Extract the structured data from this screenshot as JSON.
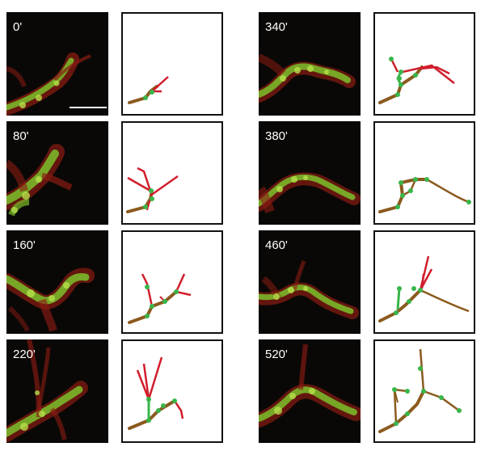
{
  "figure": {
    "panels": [
      {
        "time": "0'"
      },
      {
        "time": "80'"
      },
      {
        "time": "160'"
      },
      {
        "time": "220'"
      },
      {
        "time": "340'"
      },
      {
        "time": "380'"
      },
      {
        "time": "460'"
      },
      {
        "time": "520'"
      }
    ],
    "colors": {
      "background": "#ffffff",
      "micrograph_bg": "#0a0806",
      "stable_branch": "#8b5a1e",
      "dynamic_branch": "#d11d2c",
      "node": "#39b54a",
      "tissue_green": "#7bbf2a",
      "tissue_red": "#8a1c12",
      "label_text": "#ffffff",
      "frame": "#111111"
    }
  }
}
